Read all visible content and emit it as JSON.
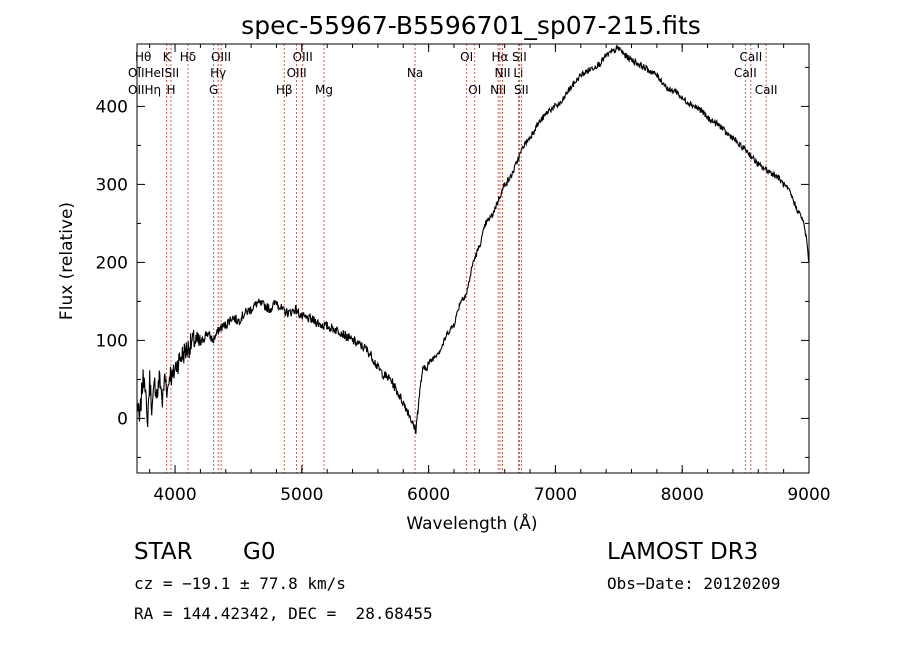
{
  "chart_data": {
    "type": "line",
    "title": "spec-55967-B5596701_sp07-215.fits",
    "xlabel": "Wavelength (Å)",
    "ylabel": "Flux (relative)",
    "xlim": [
      3700,
      9000
    ],
    "ylim": [
      -70,
      480
    ],
    "x_ticks": [
      4000,
      5000,
      6000,
      7000,
      8000,
      9000
    ],
    "y_ticks": [
      0,
      100,
      200,
      300,
      400
    ],
    "series": [
      {
        "name": "spectrum",
        "x": [
          3700,
          3720,
          3740,
          3760,
          3780,
          3800,
          3820,
          3840,
          3860,
          3880,
          3900,
          3920,
          3940,
          3960,
          3980,
          4000,
          4050,
          4100,
          4150,
          4200,
          4250,
          4300,
          4350,
          4400,
          4450,
          4500,
          4550,
          4600,
          4650,
          4700,
          4750,
          4800,
          4850,
          4900,
          4950,
          5000,
          5050,
          5100,
          5150,
          5200,
          5250,
          5300,
          5350,
          5400,
          5450,
          5500,
          5550,
          5600,
          5650,
          5700,
          5750,
          5800,
          5850,
          5880,
          5900,
          5920,
          5950,
          6000,
          6050,
          6100,
          6150,
          6200,
          6250,
          6300,
          6350,
          6400,
          6450,
          6500,
          6550,
          6600,
          6650,
          6700,
          6750,
          6800,
          6850,
          6900,
          6950,
          7000,
          7050,
          7100,
          7150,
          7200,
          7250,
          7300,
          7350,
          7400,
          7450,
          7500,
          7550,
          7600,
          7650,
          7700,
          7750,
          7800,
          7850,
          7900,
          7950,
          8000,
          8050,
          8100,
          8150,
          8200,
          8250,
          8300,
          8350,
          8400,
          8450,
          8500,
          8550,
          8600,
          8650,
          8700,
          8750,
          8800,
          8850,
          8900,
          8950,
          8980,
          9000
        ],
        "y": [
          20,
          -5,
          40,
          60,
          -10,
          50,
          10,
          45,
          30,
          55,
          20,
          55,
          35,
          60,
          50,
          65,
          80,
          90,
          100,
          95,
          110,
          100,
          115,
          120,
          130,
          125,
          135,
          140,
          148,
          145,
          140,
          150,
          138,
          135,
          140,
          130,
          128,
          125,
          120,
          118,
          115,
          112,
          105,
          100,
          95,
          90,
          80,
          65,
          55,
          50,
          35,
          20,
          5,
          -10,
          -15,
          20,
          60,
          70,
          80,
          90,
          110,
          120,
          150,
          160,
          200,
          220,
          250,
          260,
          280,
          300,
          310,
          330,
          350,
          360,
          375,
          385,
          395,
          400,
          405,
          420,
          430,
          440,
          445,
          450,
          455,
          465,
          470,
          475,
          465,
          460,
          455,
          450,
          445,
          440,
          430,
          420,
          420,
          410,
          405,
          400,
          395,
          385,
          380,
          375,
          365,
          360,
          350,
          345,
          335,
          325,
          320,
          315,
          310,
          300,
          290,
          270,
          255,
          230,
          200
        ]
      }
    ],
    "line_markers": [
      {
        "name": "CaII K",
        "x": 3934,
        "label": "K",
        "row": 0
      },
      {
        "name": "CaII H",
        "x": 3968,
        "label": "H",
        "row": 2
      },
      {
        "name": "Hδ",
        "x": 4102,
        "label": "Hδ",
        "row": 0
      },
      {
        "name": "OIII",
        "x": 4363,
        "label": "OIII",
        "row": 0
      },
      {
        "name": "Hγ",
        "x": 4340,
        "label": "Hγ",
        "row": 1
      },
      {
        "name": "G",
        "x": 4305,
        "label": "G",
        "row": 2
      },
      {
        "name": "Hβ",
        "x": 4861,
        "label": "Hβ",
        "row": 2
      },
      {
        "name": "OIII",
        "x": 4959,
        "label": "OIII",
        "row": 1
      },
      {
        "name": "OIII",
        "x": 5007,
        "label": "OIII",
        "row": 0
      },
      {
        "name": "Mg",
        "x": 5175,
        "label": "Mg",
        "row": 2
      },
      {
        "name": "Na",
        "x": 5893,
        "label": "Na",
        "row": 1
      },
      {
        "name": "OI",
        "x": 6300,
        "label": "OI",
        "row": 0
      },
      {
        "name": "OI",
        "x": 6364,
        "label": "OI",
        "row": 2
      },
      {
        "name": "NII",
        "x": 6548,
        "label": "NII",
        "row": 2
      },
      {
        "name": "Hα",
        "x": 6563,
        "label": "Hα",
        "row": 0
      },
      {
        "name": "NII",
        "x": 6583,
        "label": "NII",
        "row": 1
      },
      {
        "name": "Li",
        "x": 6708,
        "label": "Li",
        "row": 1
      },
      {
        "name": "SII",
        "x": 6716,
        "label": "SII",
        "row": 0
      },
      {
        "name": "SII",
        "x": 6731,
        "label": "SII",
        "row": 2
      },
      {
        "name": "CaII",
        "x": 8498,
        "label": "CaII",
        "row": 1
      },
      {
        "name": "CaII",
        "x": 8542,
        "label": "CaII",
        "row": 0
      },
      {
        "name": "CaII",
        "x": 8662,
        "label": "CaII",
        "row": 2
      }
    ],
    "crowded_labels": {
      "row0": "Hθ",
      "row1": "OIIHeISII",
      "row2": "OIIHη"
    }
  },
  "info": {
    "object_class": "STAR",
    "subclass": "G0",
    "survey": "LAMOST DR3",
    "redshift": "cz = −19.1 ± 77.8 km/s",
    "obs_date": "Obs−Date: 20120209",
    "coords": "RA = 144.42342, DEC =  28.68455"
  }
}
